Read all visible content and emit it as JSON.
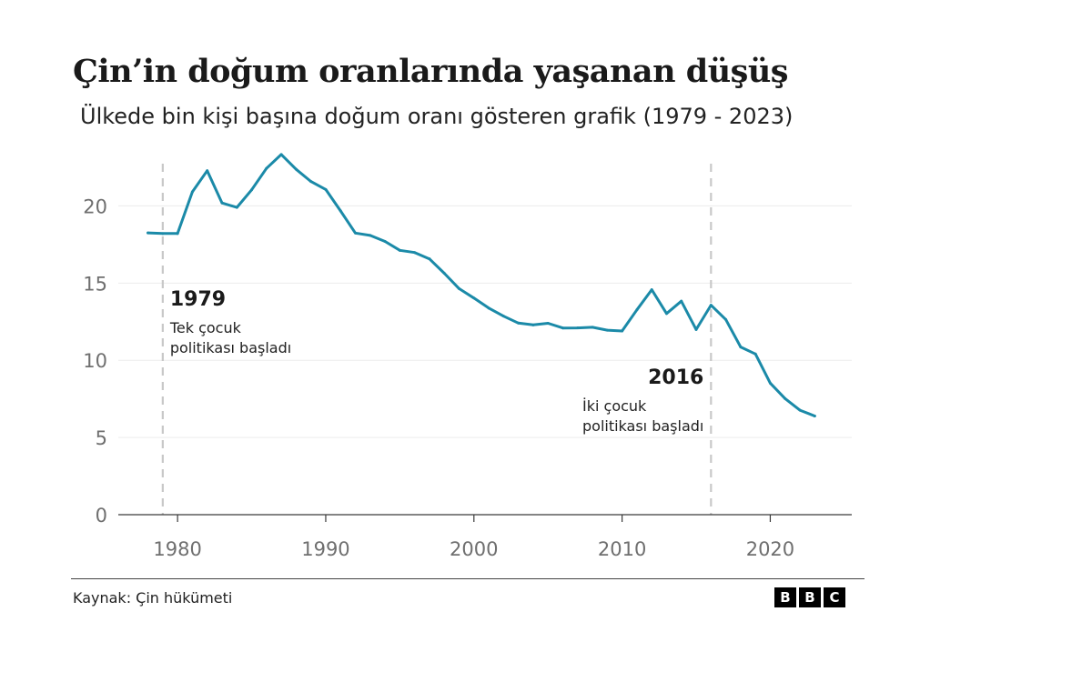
{
  "header": {
    "title": "Çin’in doğum oranlarında yaşanan düşüş",
    "subtitle": "Ülkede bin kişi başına doğum oranı gösteren grafik (1979 - 2023)"
  },
  "footer": {
    "source": "Kaynak: Çin hükümeti",
    "logo_letters": [
      "B",
      "B",
      "C"
    ]
  },
  "chart_data": {
    "type": "line",
    "title": "Çin’in doğum oranlarında yaşanan düşüş",
    "subtitle": "Ülkede bin kişi başına doğum oranı gösteren grafik (1979 - 2023)",
    "xlabel": "",
    "ylabel": "",
    "xlim": [
      1976,
      2025.5
    ],
    "ylim": [
      0,
      23.5
    ],
    "xticks": [
      1980,
      1990,
      2000,
      2010,
      2020
    ],
    "yticks": [
      0,
      5,
      10,
      15,
      20
    ],
    "grid": true,
    "line_color": "#1b8aa8",
    "series": [
      {
        "x": [
          1978,
          1979,
          1980,
          1981,
          1982,
          1983,
          1984,
          1985,
          1986,
          1987,
          1988,
          1989,
          1990,
          1991,
          1992,
          1993,
          1994,
          1995,
          1996,
          1997,
          1998,
          1999,
          2000,
          2001,
          2002,
          2003,
          2004,
          2005,
          2006,
          2007,
          2008,
          2009,
          2010,
          2011,
          2012,
          2013,
          2014,
          2015,
          2016,
          2017,
          2018,
          2019,
          2020,
          2021,
          2022,
          2023
        ],
        "values": [
          18.25,
          18.21,
          18.21,
          20.91,
          22.28,
          20.19,
          19.9,
          21.04,
          22.43,
          23.33,
          22.37,
          21.58,
          21.06,
          19.68,
          18.24,
          18.09,
          17.7,
          17.12,
          16.98,
          16.57,
          15.64,
          14.64,
          14.03,
          13.38,
          12.86,
          12.41,
          12.29,
          12.4,
          12.09,
          12.1,
          12.14,
          11.95,
          11.9,
          13.27,
          14.57,
          13.03,
          13.83,
          11.99,
          13.57,
          12.64,
          10.86,
          10.41,
          8.52,
          7.52,
          6.77,
          6.39
        ]
      }
    ],
    "annotations": [
      {
        "x": 1979,
        "year": "1979",
        "line1": "Tek çocuk",
        "line2": "politikası başladı"
      },
      {
        "x": 2016,
        "year": "2016",
        "line1": "İki çocuk",
        "line2": "politikası başladı"
      }
    ]
  }
}
